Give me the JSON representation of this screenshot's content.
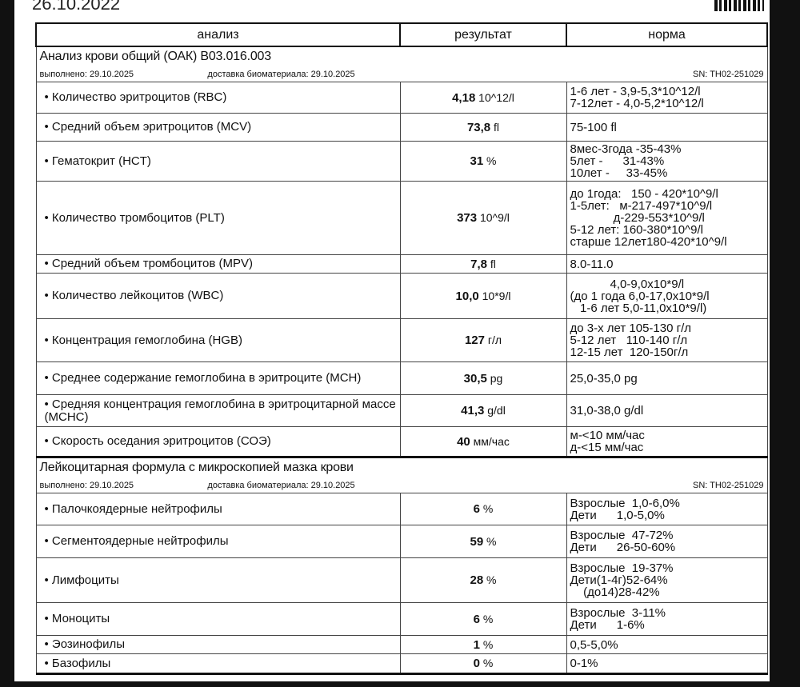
{
  "header": {
    "date": "26.10.2022"
  },
  "columns": {
    "analysis": "анализ",
    "result": "результат",
    "norm": "норма"
  },
  "sections": [
    {
      "title": "Анализ крови общий (ОАК) B03.016.003",
      "done": "выполнено: 29.10.2025",
      "delivery": "доставка биоматериала: 29.10.2025",
      "sn": "SN: TH02-251029",
      "rows": [
        {
          "name": "• Количество эритроцитов (RBC)",
          "value": "4,18",
          "unit": " 10^12/l",
          "norm": "1-6 лет - 3,9-5,3*10^12/l\n7-12лет - 4,0-5,2*10^12/l"
        },
        {
          "name": "• Средний объем эритроцитов (MCV)",
          "value": "73,8",
          "unit": " fl",
          "norm": "75-100 fl"
        },
        {
          "name": "• Гематокрит (HCT)",
          "value": "31",
          "unit": " %",
          "norm": "8мес-3года -35-43%\n5лет -      31-43%\n10лет -     33-45%"
        },
        {
          "name": "• Количество тромбоцитов (PLT)",
          "value": "373",
          "unit": " 10^9/l",
          "norm": "до 1года:   150 - 420*10^9/l\n1-5лет:   м-217-497*10^9/l\n             д-229-553*10^9/l\n5-12 лет: 160-380*10^9/l\nстарше 12лет180-420*10^9/l"
        },
        {
          "name": "• Средний объем тромбоцитов (MPV)",
          "value": "7,8",
          "unit": " fl",
          "norm": "8.0-11.0"
        },
        {
          "name": "• Количество лейкоцитов (WBC)",
          "value": "10,0",
          "unit": " 10*9/l",
          "norm": "            4,0-9,0x10*9/l\n(до 1 года 6,0-17,0x10*9/l\n   1-6 лет 5,0-11,0x10*9/l)"
        },
        {
          "name": "• Концентрация гемоглобина (HGB)",
          "value": "127",
          "unit": " г/л",
          "norm": "до 3-х лет 105-130 г/л\n5-12 лет   110-140 г/л\n12-15 лет  120-150г/л"
        },
        {
          "name": "• Среднее содержание гемоглобина в эритроците (MCH)",
          "value": "30,5",
          "unit": " pg",
          "norm": "25,0-35,0 pg"
        },
        {
          "name": "• Средняя концентрация гемоглобина в эритроцитарной массе (MCHC)",
          "value": "41,3",
          "unit": " g/dl",
          "norm": "31,0-38,0 g/dl"
        },
        {
          "name": "• Скорость оседания эритроцитов (СОЭ)",
          "value": "40",
          "unit": " мм/час",
          "norm": "м-<10 мм/час\nд-<15 мм/час"
        }
      ]
    },
    {
      "title": "Лейкоцитарная формула с микроскопией мазка крови",
      "done": "выполнено: 29.10.2025",
      "delivery": "доставка биоматериала: 29.10.2025",
      "sn": "SN: TH02-251029",
      "rows": [
        {
          "name": "• Палочкоядерные нейтрофилы",
          "value": "6",
          "unit": " %",
          "norm": "Взрослые  1,0-6,0%\nДети      1,0-5,0%"
        },
        {
          "name": "• Сегментоядерные нейтрофилы",
          "value": "59",
          "unit": " %",
          "norm": "Взрослые  47-72%\nДети      26-50-60%"
        },
        {
          "name": "• Лимфоциты",
          "value": "28",
          "unit": " %",
          "norm": "Взрослые  19-37%\nДети(1-4г)52-64%\n    (до14)28-42%"
        },
        {
          "name": "• Моноциты",
          "value": "6",
          "unit": " %",
          "norm": "Взрослые  3-11%\nДети      1-6%"
        },
        {
          "name": "• Эозинофилы",
          "value": "1",
          "unit": " %",
          "norm": "0,5-5,0%"
        },
        {
          "name": "• Базофилы",
          "value": "0",
          "unit": " %",
          "norm": "0-1%"
        }
      ]
    }
  ]
}
